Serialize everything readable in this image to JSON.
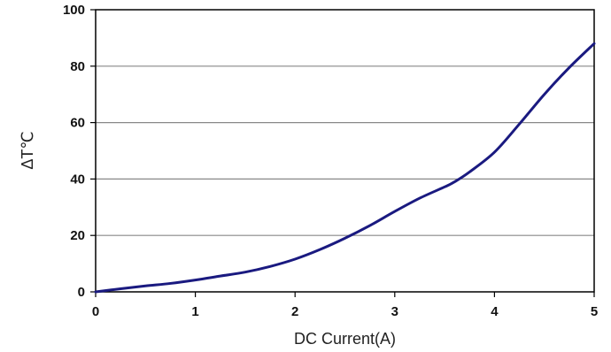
{
  "chart_data": {
    "type": "line",
    "title": "",
    "xlabel": "DC Current(A)",
    "ylabel": "ΔT℃",
    "xlim": [
      0,
      5
    ],
    "ylim": [
      0,
      100
    ],
    "x_ticks": [
      "0",
      "1",
      "2",
      "3",
      "4",
      "5"
    ],
    "y_ticks": [
      "0",
      "20",
      "40",
      "60",
      "80",
      "100"
    ],
    "grid": "horizontal",
    "legend": "none",
    "line_color": "#1a1a80",
    "series": [
      {
        "x": [
          0,
          0.25,
          0.5,
          0.75,
          1.0,
          1.25,
          1.5,
          1.75,
          2.0,
          2.25,
          2.5,
          2.75,
          3.0,
          3.25,
          3.5,
          3.6,
          3.75,
          4.0,
          4.25,
          4.5,
          4.75,
          5.0
        ],
        "y": [
          0,
          1.1,
          2.1,
          3.0,
          4.2,
          5.6,
          7.0,
          9.0,
          11.6,
          15.0,
          19.0,
          23.5,
          28.5,
          33.2,
          37.2,
          39.0,
          42.5,
          49.5,
          59.5,
          70.0,
          79.5,
          88.0
        ]
      }
    ]
  }
}
